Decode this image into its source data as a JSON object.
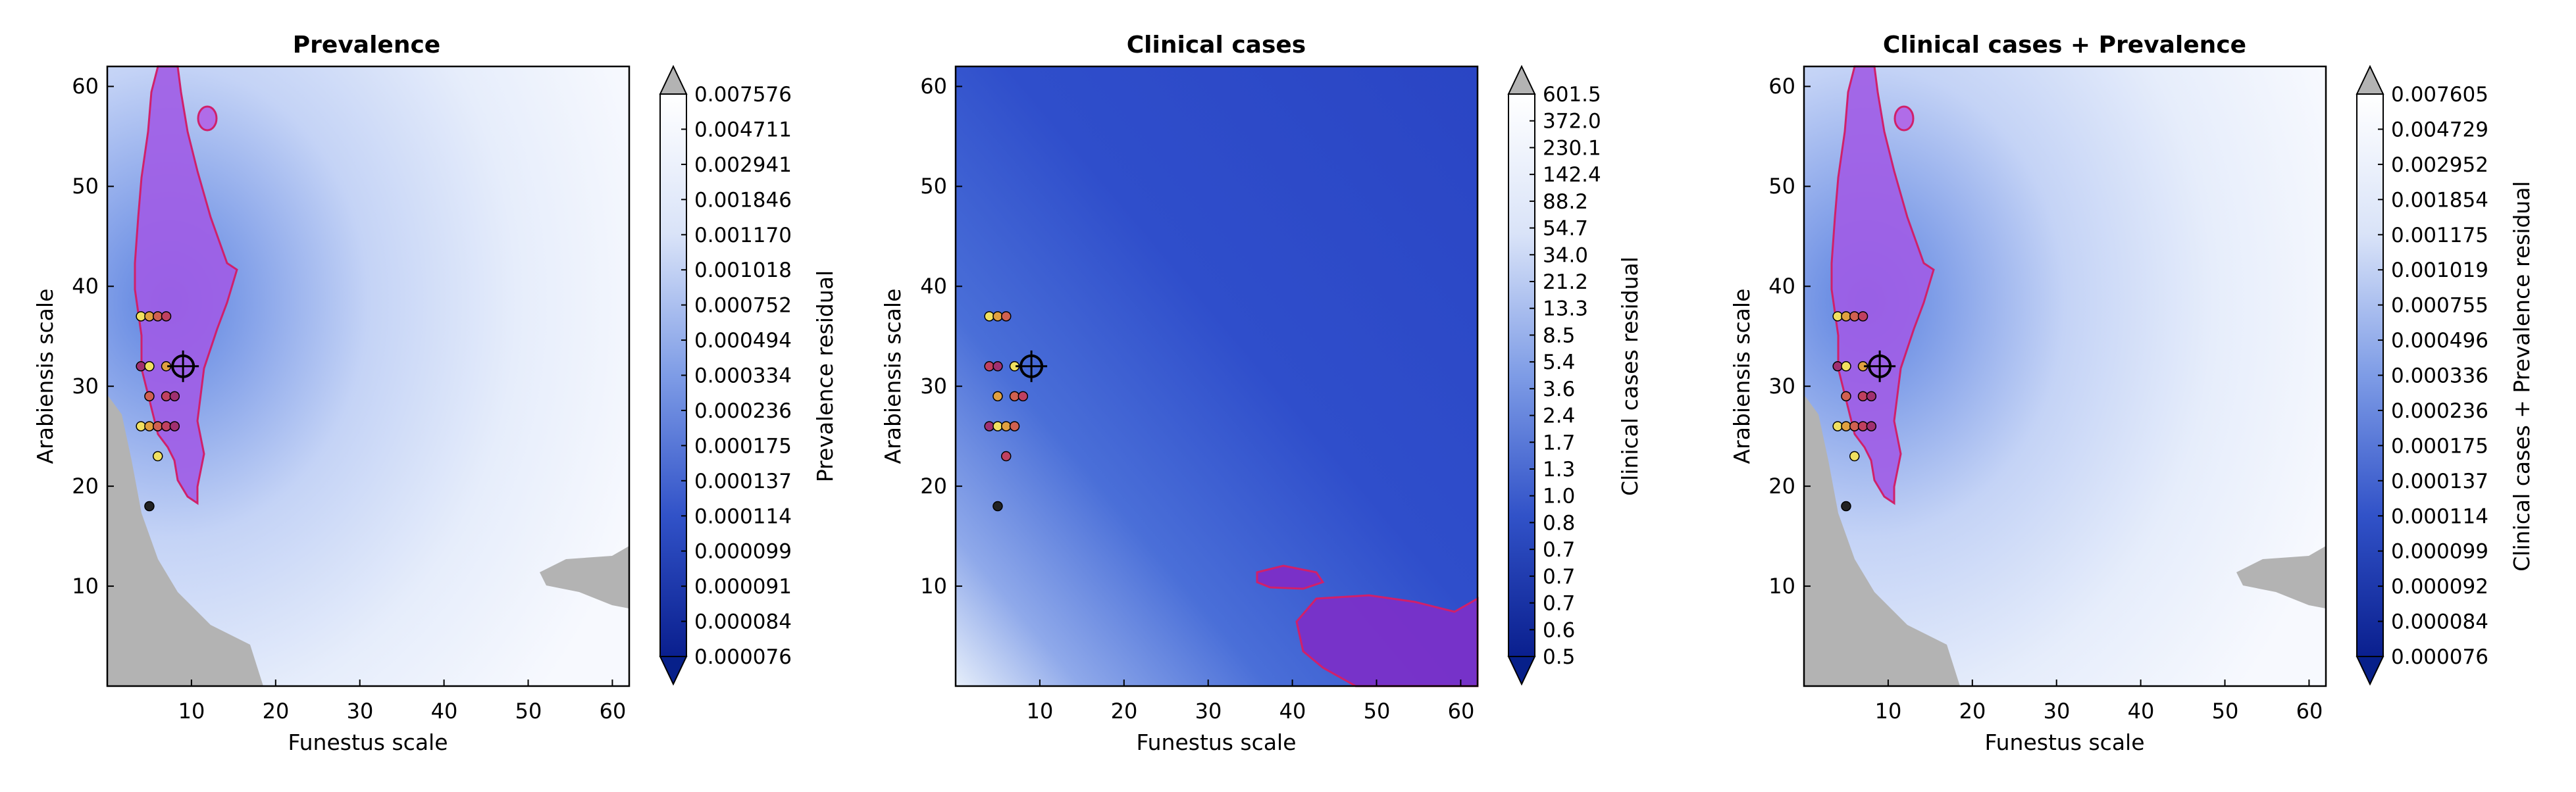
{
  "chart_data": [
    {
      "type": "heatmap",
      "title": "Prevalence",
      "xlabel": "Funestus scale",
      "ylabel": "Arabiensis scale",
      "xlim": [
        0,
        62
      ],
      "ylim": [
        0,
        62
      ],
      "xticks": [
        "10",
        "20",
        "30",
        "40",
        "50",
        "60"
      ],
      "yticks": [
        "10",
        "20",
        "30",
        "40",
        "50",
        "60"
      ],
      "colorbar_label": "Prevalence residual",
      "colorbar_ticks": [
        "0.007576",
        "0.004711",
        "0.002941",
        "0.001846",
        "0.001170",
        "0.001018",
        "0.000752",
        "0.000494",
        "0.000334",
        "0.000236",
        "0.000175",
        "0.000137",
        "0.000114",
        "0.000099",
        "0.000091",
        "0.000084",
        "0.000076"
      ],
      "best_fit_marker": {
        "x": 9,
        "y": 32
      },
      "sample_points": [
        {
          "x": 4,
          "y": 37
        },
        {
          "x": 5,
          "y": 37
        },
        {
          "x": 6,
          "y": 37
        },
        {
          "x": 7,
          "y": 37
        },
        {
          "x": 4,
          "y": 32
        },
        {
          "x": 5,
          "y": 32
        },
        {
          "x": 7,
          "y": 32
        },
        {
          "x": 5,
          "y": 29
        },
        {
          "x": 7,
          "y": 29
        },
        {
          "x": 8,
          "y": 29
        },
        {
          "x": 4,
          "y": 26
        },
        {
          "x": 5,
          "y": 26
        },
        {
          "x": 6,
          "y": 26
        },
        {
          "x": 7,
          "y": 26
        },
        {
          "x": 8,
          "y": 26
        },
        {
          "x": 6,
          "y": 23
        },
        {
          "x": 5,
          "y": 18
        }
      ]
    },
    {
      "type": "heatmap",
      "title": "Clinical cases",
      "xlabel": "Funestus scale",
      "ylabel": "Arabiensis scale",
      "xlim": [
        0,
        62
      ],
      "ylim": [
        0,
        62
      ],
      "xticks": [
        "10",
        "20",
        "30",
        "40",
        "50",
        "60"
      ],
      "yticks": [
        "10",
        "20",
        "30",
        "40",
        "50",
        "60"
      ],
      "colorbar_label": "Clinical cases residual",
      "colorbar_ticks": [
        "601.5",
        "372.0",
        "230.1",
        "142.4",
        "88.2",
        "54.7",
        "34.0",
        "21.2",
        "13.3",
        "8.5",
        "5.4",
        "3.6",
        "2.4",
        "1.7",
        "1.3",
        "1.0",
        "0.8",
        "0.7",
        "0.7",
        "0.7",
        "0.6",
        "0.5"
      ],
      "best_fit_marker": {
        "x": 9,
        "y": 32
      },
      "sample_points": [
        {
          "x": 4,
          "y": 37
        },
        {
          "x": 5,
          "y": 37
        },
        {
          "x": 6,
          "y": 37
        },
        {
          "x": 4,
          "y": 32
        },
        {
          "x": 5,
          "y": 32
        },
        {
          "x": 7,
          "y": 32
        },
        {
          "x": 5,
          "y": 29
        },
        {
          "x": 7,
          "y": 29
        },
        {
          "x": 8,
          "y": 29
        },
        {
          "x": 4,
          "y": 26
        },
        {
          "x": 5,
          "y": 26
        },
        {
          "x": 6,
          "y": 26
        },
        {
          "x": 7,
          "y": 26
        },
        {
          "x": 6,
          "y": 23
        },
        {
          "x": 5,
          "y": 18
        }
      ]
    },
    {
      "type": "heatmap",
      "title": "Clinical cases + Prevalence",
      "xlabel": "Funestus scale",
      "ylabel": "Arabiensis scale",
      "xlim": [
        0,
        62
      ],
      "ylim": [
        0,
        62
      ],
      "xticks": [
        "10",
        "20",
        "30",
        "40",
        "50",
        "60"
      ],
      "yticks": [
        "10",
        "20",
        "30",
        "40",
        "50",
        "60"
      ],
      "colorbar_label": "Clinical cases + Prevalence residual",
      "colorbar_ticks": [
        "0.007605",
        "0.004729",
        "0.002952",
        "0.001854",
        "0.001175",
        "0.001019",
        "0.000755",
        "0.000496",
        "0.000336",
        "0.000236",
        "0.000175",
        "0.000137",
        "0.000114",
        "0.000099",
        "0.000092",
        "0.000084",
        "0.000076"
      ],
      "best_fit_marker": {
        "x": 9,
        "y": 32
      },
      "sample_points": [
        {
          "x": 4,
          "y": 37
        },
        {
          "x": 5,
          "y": 37
        },
        {
          "x": 6,
          "y": 37
        },
        {
          "x": 7,
          "y": 37
        },
        {
          "x": 4,
          "y": 32
        },
        {
          "x": 5,
          "y": 32
        },
        {
          "x": 7,
          "y": 32
        },
        {
          "x": 5,
          "y": 29
        },
        {
          "x": 7,
          "y": 29
        },
        {
          "x": 8,
          "y": 29
        },
        {
          "x": 4,
          "y": 26
        },
        {
          "x": 5,
          "y": 26
        },
        {
          "x": 6,
          "y": 26
        },
        {
          "x": 7,
          "y": 26
        },
        {
          "x": 8,
          "y": 26
        },
        {
          "x": 6,
          "y": 23
        },
        {
          "x": 5,
          "y": 18
        }
      ]
    }
  ],
  "colors": {
    "colorbar_light": "#ffffff",
    "colorbar_dark": "#08208c",
    "highlight_region": "#a05ce6",
    "highlight_edge": "#d0206a",
    "gray_mask": "#b3b3b3"
  }
}
